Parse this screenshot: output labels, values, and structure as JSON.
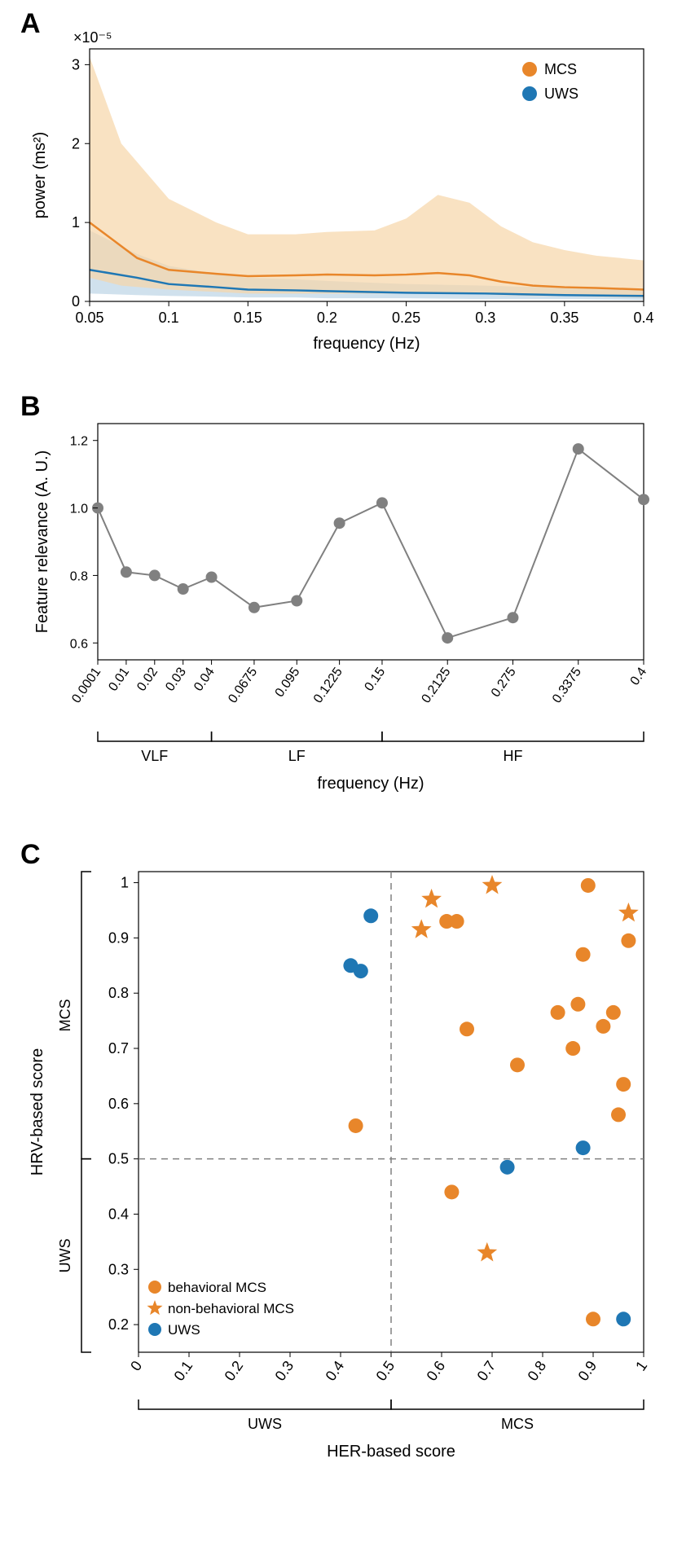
{
  "panelA": {
    "label": "A",
    "type": "line-with-band",
    "xlabel": "frequency (Hz)",
    "ylabel": "power (ms²)",
    "y_exponent": "×10⁻⁵",
    "xlim": [
      0.05,
      0.4
    ],
    "ylim": [
      0,
      3.2
    ],
    "xticks": [
      0.05,
      0.1,
      0.15,
      0.2,
      0.25,
      0.3,
      0.35,
      0.4
    ],
    "yticks": [
      0,
      1,
      2,
      3
    ],
    "legend": [
      {
        "label": "MCS",
        "color": "#e8862a",
        "marker": "circle"
      },
      {
        "label": "UWS",
        "color": "#1f77b4",
        "marker": "circle"
      }
    ],
    "series": {
      "mcs_line": {
        "color": "#e8862a",
        "x": [
          0.05,
          0.08,
          0.1,
          0.13,
          0.15,
          0.18,
          0.2,
          0.23,
          0.25,
          0.27,
          0.29,
          0.31,
          0.33,
          0.35,
          0.37,
          0.4
        ],
        "y": [
          1.0,
          0.55,
          0.4,
          0.35,
          0.32,
          0.33,
          0.34,
          0.33,
          0.34,
          0.36,
          0.33,
          0.25,
          0.2,
          0.18,
          0.17,
          0.15
        ]
      },
      "mcs_band": {
        "color": "#f7d5a8",
        "x": [
          0.05,
          0.07,
          0.1,
          0.13,
          0.15,
          0.18,
          0.2,
          0.23,
          0.25,
          0.27,
          0.29,
          0.31,
          0.33,
          0.35,
          0.37,
          0.4
        ],
        "upper": [
          3.1,
          2.0,
          1.3,
          1.0,
          0.85,
          0.85,
          0.88,
          0.9,
          1.05,
          1.35,
          1.25,
          0.95,
          0.75,
          0.65,
          0.58,
          0.52
        ],
        "lower": [
          0.3,
          0.2,
          0.15,
          0.12,
          0.1,
          0.1,
          0.1,
          0.1,
          0.1,
          0.1,
          0.1,
          0.08,
          0.07,
          0.07,
          0.06,
          0.05
        ]
      },
      "uws_line": {
        "color": "#1f77b4",
        "x": [
          0.05,
          0.08,
          0.1,
          0.13,
          0.15,
          0.18,
          0.2,
          0.25,
          0.3,
          0.35,
          0.4
        ],
        "y": [
          0.4,
          0.3,
          0.22,
          0.18,
          0.15,
          0.14,
          0.13,
          0.11,
          0.1,
          0.08,
          0.07
        ]
      },
      "uws_band": {
        "color": "#bcd4e6",
        "x": [
          0.05,
          0.08,
          0.1,
          0.13,
          0.15,
          0.18,
          0.2,
          0.25,
          0.3,
          0.35,
          0.4
        ],
        "upper": [
          0.9,
          0.6,
          0.45,
          0.35,
          0.3,
          0.28,
          0.26,
          0.22,
          0.2,
          0.17,
          0.15
        ],
        "lower": [
          0.1,
          0.08,
          0.07,
          0.06,
          0.05,
          0.05,
          0.04,
          0.04,
          0.03,
          0.03,
          0.02
        ]
      }
    },
    "label_fontsize": 20,
    "tick_fontsize": 18,
    "axis_color": "#000000",
    "background": "#ffffff"
  },
  "panelB": {
    "label": "B",
    "type": "line-scatter",
    "xlabel": "frequency (Hz)",
    "ylabel": "Feature relevance (A. U.)",
    "ylim": [
      0.55,
      1.25
    ],
    "yticks": [
      0.6,
      0.8,
      1.0,
      1.2
    ],
    "xticks_labels": [
      "0.0001",
      "0.01",
      "0.02",
      "0.03",
      "0.04",
      "0.0675",
      "0.095",
      "0.1225",
      "0.15",
      "0.2125",
      "0.275",
      "0.3375",
      "0.4"
    ],
    "xpositions": [
      0,
      1,
      2,
      3,
      4,
      5.5,
      7,
      8.5,
      10,
      12.3,
      14.6,
      16.9,
      19.2
    ],
    "values": [
      1.0,
      0.81,
      0.8,
      0.76,
      0.795,
      0.705,
      0.725,
      0.955,
      1.015,
      0.615,
      0.675,
      1.175,
      1.025
    ],
    "bands": [
      {
        "label": "VLF",
        "from": 0,
        "to": 4
      },
      {
        "label": "LF",
        "from": 4,
        "to": 10
      },
      {
        "label": "HF",
        "from": 10,
        "to": 19.2
      }
    ],
    "marker_color": "#808080",
    "line_color": "#808080",
    "marker_size": 7,
    "label_fontsize": 20,
    "tick_fontsize": 16,
    "axis_color": "#000000"
  },
  "panelC": {
    "label": "C",
    "type": "scatter",
    "xlabel": "HER-based score",
    "ylabel": "HRV-based score",
    "xlim": [
      0,
      1
    ],
    "ylim": [
      0.15,
      1.02
    ],
    "xticks": [
      0,
      0.1,
      0.2,
      0.3,
      0.4,
      0.5,
      0.6,
      0.7,
      0.8,
      0.9,
      1
    ],
    "yticks": [
      0.2,
      0.3,
      0.4,
      0.5,
      0.6,
      0.7,
      0.8,
      0.9,
      1
    ],
    "x_regions": [
      {
        "label": "UWS",
        "from": 0,
        "to": 0.5
      },
      {
        "label": "MCS",
        "from": 0.5,
        "to": 1
      }
    ],
    "y_regions": [
      {
        "label": "UWS",
        "from": 0.15,
        "to": 0.5
      },
      {
        "label": "MCS",
        "from": 0.5,
        "to": 1.02
      }
    ],
    "vline": 0.5,
    "hline": 0.5,
    "legend": [
      {
        "label": "behavioral MCS",
        "color": "#e8862a",
        "marker": "circle"
      },
      {
        "label": "non-behavioral MCS",
        "color": "#e8862a",
        "marker": "star"
      },
      {
        "label": "UWS",
        "color": "#1f77b4",
        "marker": "circle"
      }
    ],
    "points": {
      "behavioral_mcs": {
        "color": "#e8862a",
        "marker": "circle",
        "data": [
          [
            0.43,
            0.56
          ],
          [
            0.61,
            0.93
          ],
          [
            0.63,
            0.93
          ],
          [
            0.62,
            0.44
          ],
          [
            0.65,
            0.735
          ],
          [
            0.75,
            0.67
          ],
          [
            0.83,
            0.765
          ],
          [
            0.86,
            0.7
          ],
          [
            0.87,
            0.78
          ],
          [
            0.88,
            0.87
          ],
          [
            0.89,
            0.995
          ],
          [
            0.9,
            0.21
          ],
          [
            0.92,
            0.74
          ],
          [
            0.94,
            0.765
          ],
          [
            0.95,
            0.58
          ],
          [
            0.96,
            0.635
          ],
          [
            0.97,
            0.895
          ]
        ]
      },
      "nonbehavioral_mcs": {
        "color": "#e8862a",
        "marker": "star",
        "data": [
          [
            0.56,
            0.915
          ],
          [
            0.58,
            0.97
          ],
          [
            0.69,
            0.33
          ],
          [
            0.7,
            0.995
          ],
          [
            0.97,
            0.945
          ]
        ]
      },
      "uws": {
        "color": "#1f77b4",
        "marker": "circle",
        "data": [
          [
            0.42,
            0.85
          ],
          [
            0.44,
            0.84
          ],
          [
            0.46,
            0.94
          ],
          [
            0.73,
            0.485
          ],
          [
            0.88,
            0.52
          ],
          [
            0.96,
            0.21
          ]
        ]
      }
    },
    "marker_size": 9,
    "label_fontsize": 20,
    "tick_fontsize": 18,
    "dash_color": "#808080",
    "axis_color": "#000000"
  }
}
